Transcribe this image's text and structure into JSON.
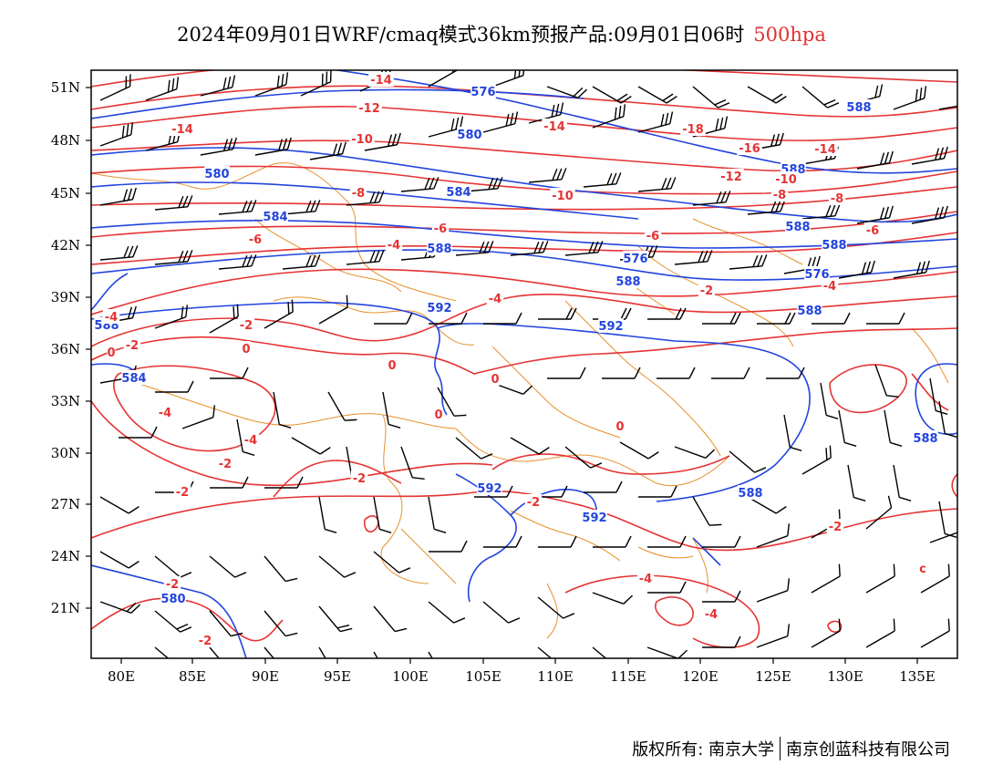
{
  "title": {
    "main": "2024年09月01日WRF/cmaq模式36km预报产品:09月01日06时",
    "level": "500hpa",
    "level_color": "#e03030"
  },
  "colors": {
    "height_contour": "#2244dd",
    "temperature_contour": "#e53333",
    "boundaries": "#e8902c",
    "wind_barbs": "#000000"
  },
  "axes": {
    "lat_labels": [
      "51N",
      "48N",
      "45N",
      "42N",
      "39N",
      "36N",
      "33N",
      "30N",
      "27N",
      "24N",
      "21N"
    ],
    "lon_labels": [
      "80E",
      "85E",
      "90E",
      "95E",
      "100E",
      "105E",
      "110E",
      "115E",
      "120E",
      "125E",
      "130E",
      "135E"
    ]
  },
  "height_labels": [
    "576",
    "580",
    "580",
    "584",
    "584",
    "588",
    "588",
    "592",
    "592",
    "592",
    "592",
    "588",
    "588",
    "588",
    "588",
    "584",
    "580",
    "576",
    "576",
    "588",
    "588",
    "588",
    "588"
  ],
  "temp_labels": [
    "-14",
    "-14",
    "-14",
    "-12",
    "-10",
    "-10",
    "-8",
    "-8",
    "-6",
    "-6",
    "-4",
    "-4",
    "-4",
    "-2",
    "-2",
    "-2",
    "-2",
    "-2",
    "0",
    "0",
    "0",
    "0",
    "-4",
    "-4",
    "-14",
    "-16",
    "-18",
    "-12",
    "-10",
    "-8",
    "-6",
    "-4",
    "-2",
    "-2",
    "-4",
    "-2",
    "-4",
    "-6",
    "0",
    "0",
    "-2",
    "-2",
    "c"
  ],
  "footer": {
    "left": "版权所有: 南京大学",
    "right": "南京创蓝科技有限公司"
  }
}
